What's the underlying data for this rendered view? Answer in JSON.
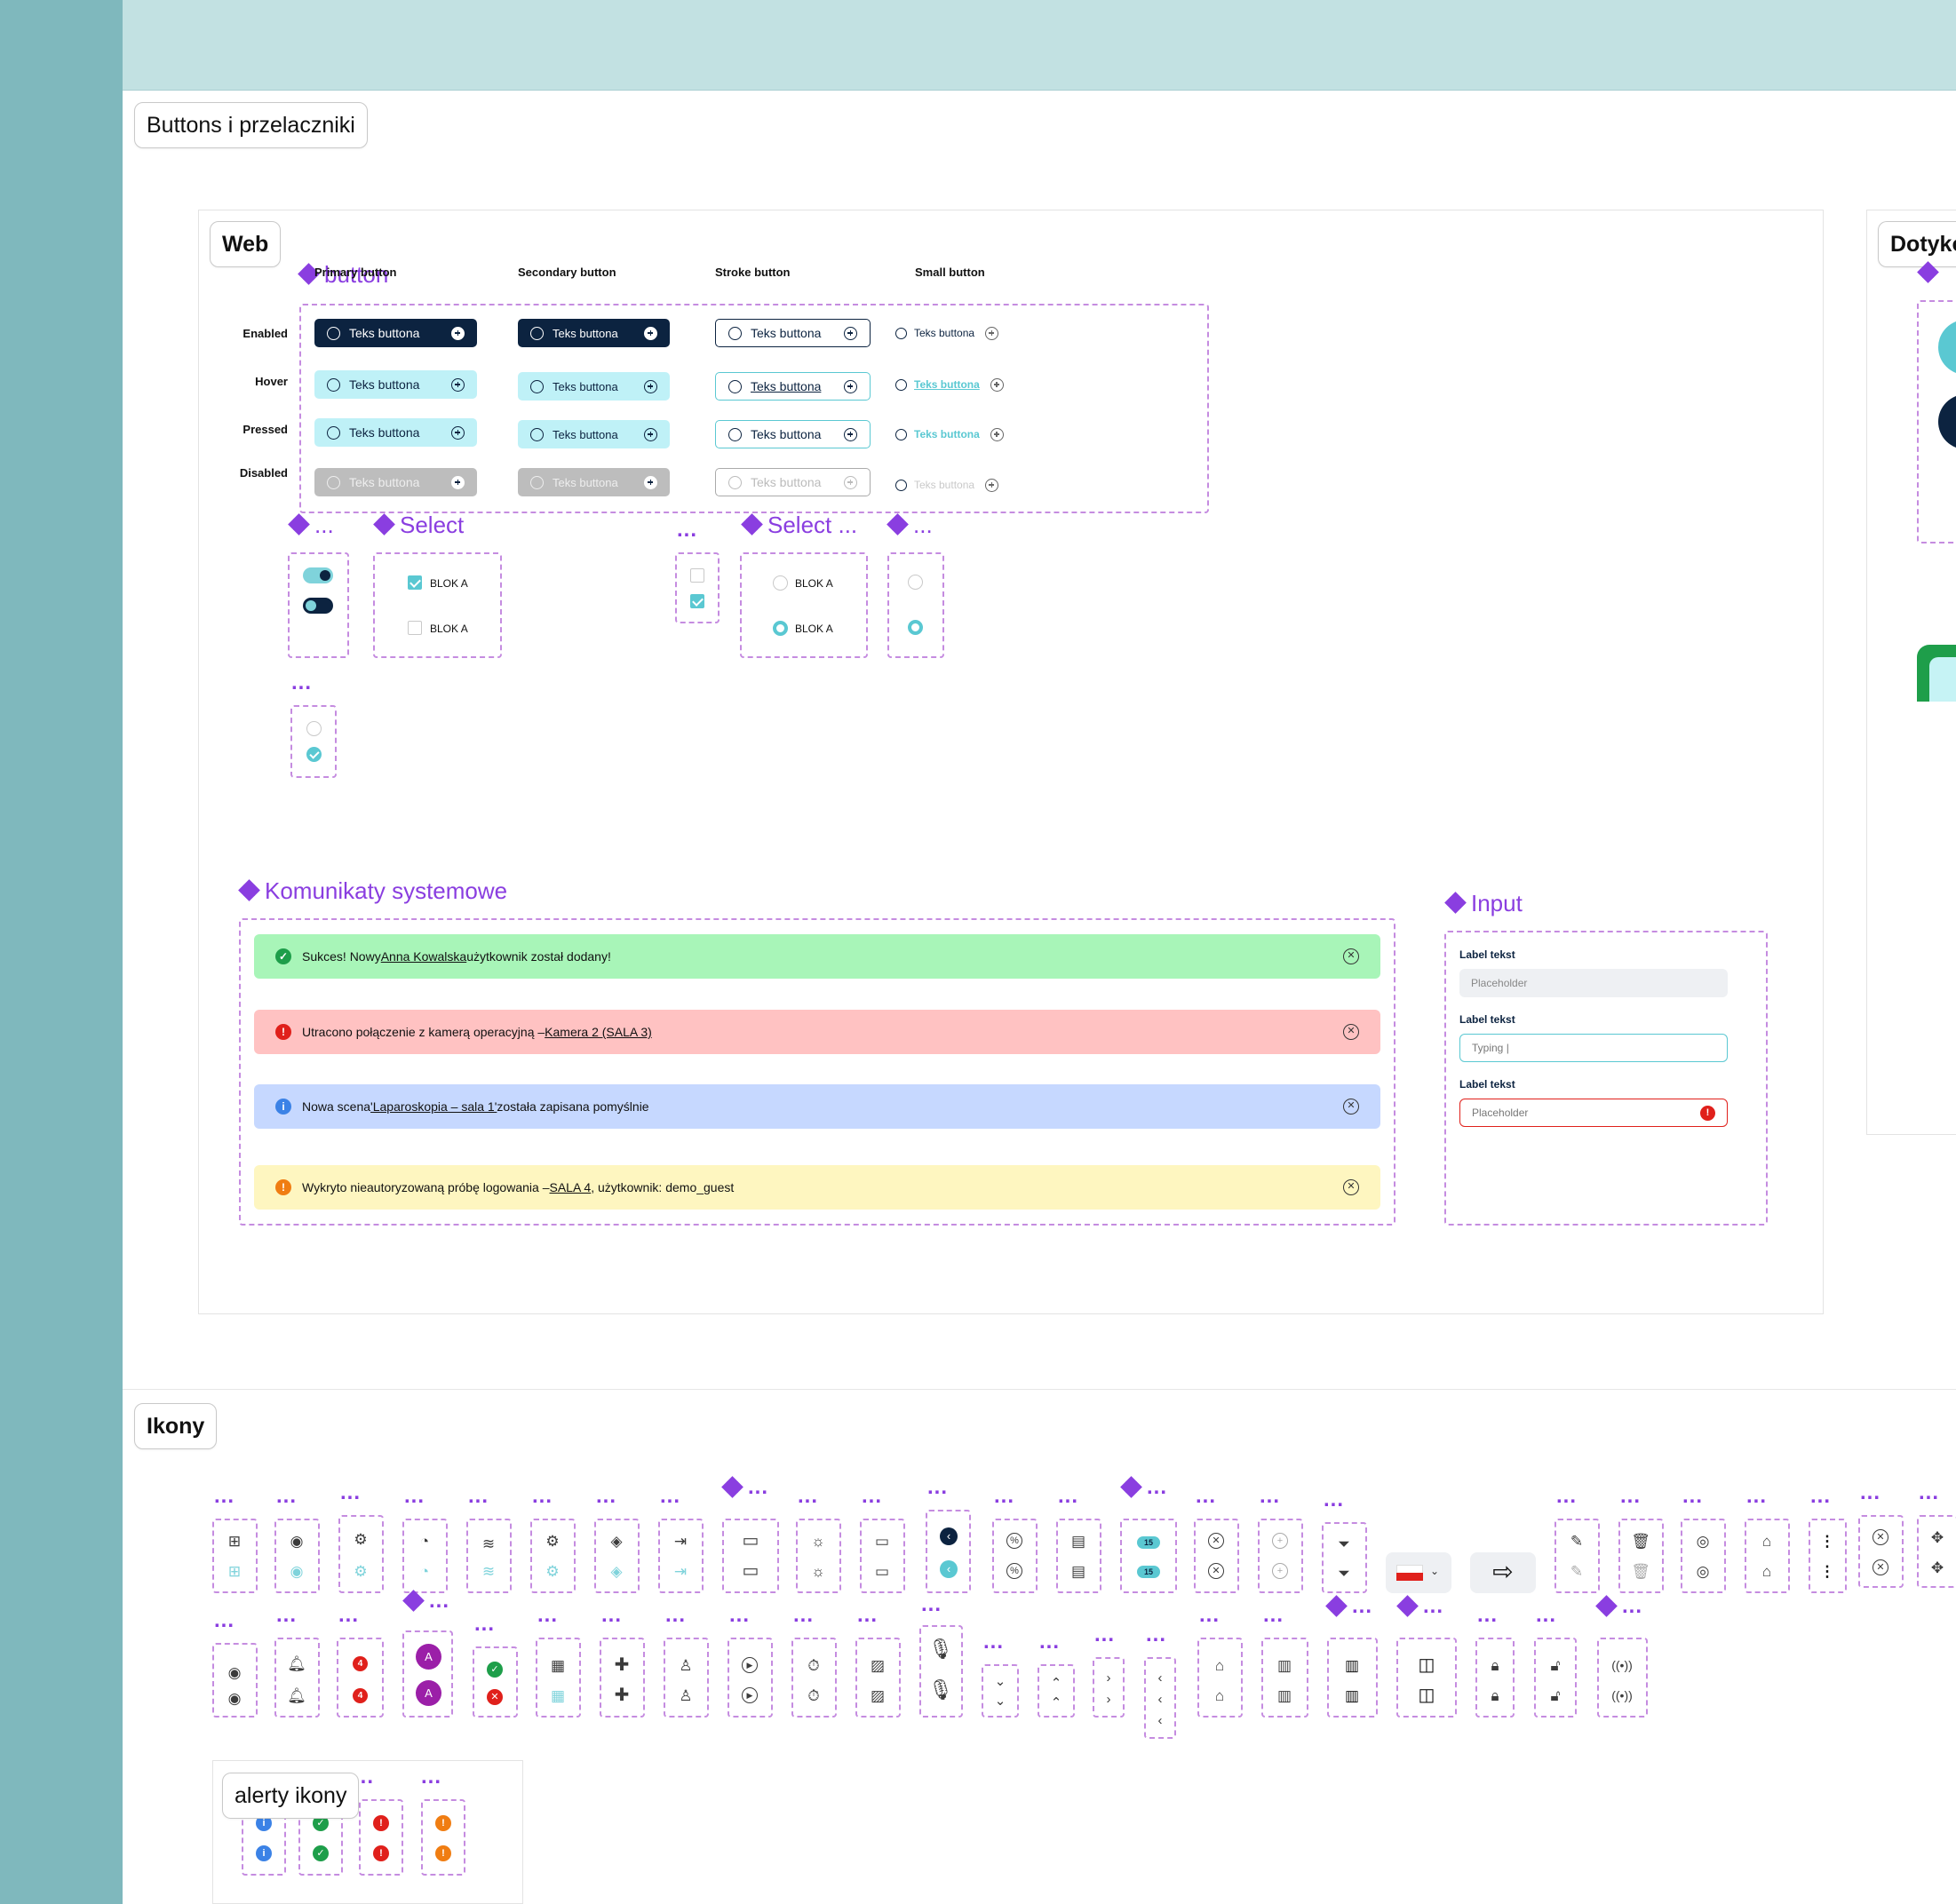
{
  "sections": {
    "buttons_title": "Buttons i przelaczniki",
    "web_title": "Web",
    "touch_title": "Dotyko",
    "icons_title": "Ikony",
    "alert_icons_title": "alerty ikony"
  },
  "buttons": {
    "component_name": "button",
    "columns": [
      "Primary button",
      "Secondary button",
      "Stroke button",
      "Small button"
    ],
    "rows": [
      "Enabled",
      "Hover",
      "Pressed",
      "Disabled"
    ],
    "label": "Teks buttona"
  },
  "selects": {
    "more": "...",
    "select_title": "Select",
    "select_title2": "Select ...",
    "option_label": "BLOK A"
  },
  "alerts_section": {
    "title": "Komunikaty systemowe",
    "success": {
      "pre": "Sukces! Nowy ",
      "link": "Anna Kowalska",
      "post": " użytkownik został dodany!"
    },
    "error": {
      "pre": "Utracono połączenie z kamerą operacyjną – ",
      "link": "Kamera 2 (SALA 3)",
      "post": ""
    },
    "info": {
      "pre": "Nowa scena ",
      "link": "'Laparoskopia – sala 1'",
      "post": " została zapisana pomyślnie"
    },
    "warning": {
      "pre": "Wykryto nieautoryzowaną próbę logowania – ",
      "link": "SALA 4",
      "post": ", użytkownik: demo_guest"
    }
  },
  "input_section": {
    "title": "Input",
    "label": "Label tekst",
    "placeholder": "Placeholder",
    "typing": "Typing |"
  },
  "icons": {
    "badge_number": "15",
    "badge_count": "4",
    "avatar_letter": "A"
  },
  "colors": {
    "navy": "#0c2340",
    "teal": "#5ac8d2",
    "purple": "#8a3ee0",
    "success_bg": "#a8f5b8",
    "error_bg": "#ffc2c2",
    "info_bg": "#c6d8ff",
    "warning_bg": "#fef6c0"
  }
}
